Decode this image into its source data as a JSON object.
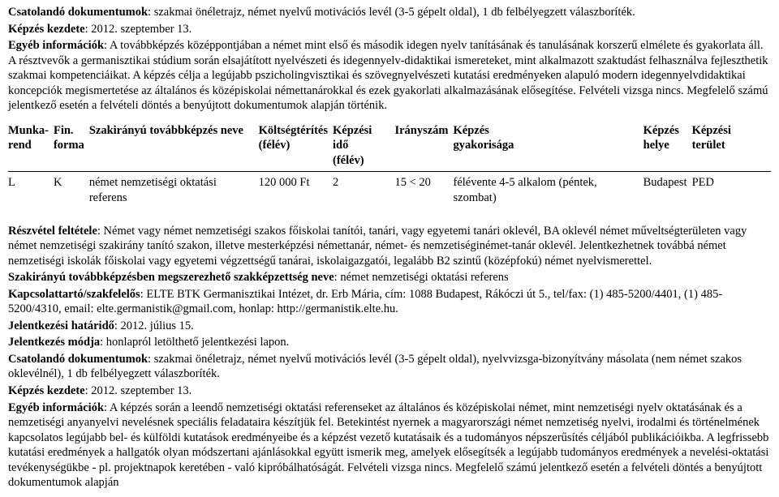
{
  "top": {
    "p1_label": "Csatolandó dokumentumok",
    "p1_text": ": szakmai önéletrajz, német nyelvű motivációs levél (3-5 gépelt oldal), 1 db felbélyegzett válaszboríték.",
    "p2_label": "Képzés kezdete",
    "p2_text": ": 2012. szeptember 13.",
    "p3_label": "Egyéb információk",
    "p3_text": ": A továbbképzés középpontjában a német mint első és második idegen nyelv tanításának és tanulásának korszerű elmélete és gyakorlata áll. A résztvevők a germanisztikai stúdium során elsajátított nyelvészeti és idegennyelv-didaktikai ismereteket, mint alkalmazott szaktudást felhasználva fejleszthetik szakmai kompetenciáikat. A képzés célja a legújabb pszicholingvisztikai és szövegnyelvészeti kutatási eredményeken alapuló modern idegennyelvdidaktikai koncepciók megismertetése az általános és középiskolai némettanárokkal és ezek gyakorlati alkalmazásának elősegítése. Felvételi vizsga nincs. Megfelelő számú jelentkező esetén a felvételi döntés a benyújtott dokumentumok alapján történik."
  },
  "table": {
    "headers": {
      "c0a": "Munka-",
      "c0b": "rend",
      "c1a": "Fin.",
      "c1b": "forma",
      "c2": "Szakirányú továbbképzés neve",
      "c3a": "Költségtérítés",
      "c3b": "(félév)",
      "c4a": "Képzési idő",
      "c4b": "(félév)",
      "c5": "Irányszám",
      "c6a": "Képzés",
      "c6b": "gyakorisága",
      "c7a": "Képzés",
      "c7b": "helye",
      "c8": "Képzési terület"
    },
    "row": {
      "c0": "L",
      "c1": "K",
      "c2": "német nemzetiségi oktatási referens",
      "c3": "120 000 Ft",
      "c4": "2",
      "c5": "15 < 20",
      "c6": "félévente 4-5 alkalom (péntek, szombat)",
      "c7": "Budapest",
      "c8": "PED"
    }
  },
  "bottom": {
    "b1_label": "Részvétel feltétele",
    "b1_text": ": Német vagy német nemzetiségi szakos főiskolai tanítói, tanári, vagy egyetemi tanári oklevél, BA oklevél német műveltségterületen vagy német nemzetiségi szakirány tanító szakon, illetve mesterképzési némettanár, német- és nemzetiséginémet-tanár oklevél. Jelentkezhetnek továbbá német nemzetiségi iskolák főiskolai vagy egyetemi végzettségű tanárai, iskolaigazgatói, legalább B2 szintű (középfokú) német nyelvismerettel.",
    "b2_label": "Szakirányú továbbképzésben megszerezhető szakképzettség neve",
    "b2_text": ": német nemzetiségi oktatási referens",
    "b3_label": "Kapcsolattartó/szakfelelős",
    "b3_text": ": ELTE BTK Germanisztikai Intézet, dr. Erb Mária, cím: 1088 Budapest, Rákóczi út 5., tel/fax: (1) 485-5200/4401, (1) 485-5200/4310, email: elte.germanistik@gmail.com, honlap: http://germanistik.elte.hu.",
    "b4_label": "Jelentkezési határidő",
    "b4_text": ": 2012. július 15.",
    "b5_label": "Jelentkezés módja",
    "b5_text": ": honlapról letölthető jelentkezési lapon.",
    "b6_label": "Csatolandó dokumentumok",
    "b6_text": ": szakmai önéletrajz, német nyelvű motivációs levél (3-5 gépelt oldal), nyelvvizsga-bizonyítvány másolata (nem német szakos oklevélnél), 1 db felbélyegzett válaszboríték.",
    "b7_label": "Képzés kezdete",
    "b7_text": ": 2012. szeptember 13.",
    "b8_label": "Egyéb információk",
    "b8_text": ": A képzés során a leendő nemzetiségi oktatási referenseket az általános és középiskolai német, mint nemzetiségi nyelv oktatásának és a nemzetiségi anyanyelvi nevelésnek speciális feladataira készítjük fel. Betekintést nyernek a magyarországi német nemzetiség nyelvi, irodalmi és történelmének kapcsolatos legújabb bel- és külföldi kutatások eredményeibe és a képzést vezető kutatásaik és a tudományos népszerűsítés céljából publikációikba. A legfrissebb kutatási eredmények a hallgatók olyan módszertani ajánlásokkal együtt ismerik meg, amelyek elősegítsék a legújabb tudományos eredmények a nevelési-oktatási tevékenységükbe - pl. projektnapok keretében - való kipróbálhatóságát. Felvételi vizsga nincs. Megfelelő számú jelentkező esetén a felvételi döntés a benyújtott dokumentumok alapján"
  }
}
